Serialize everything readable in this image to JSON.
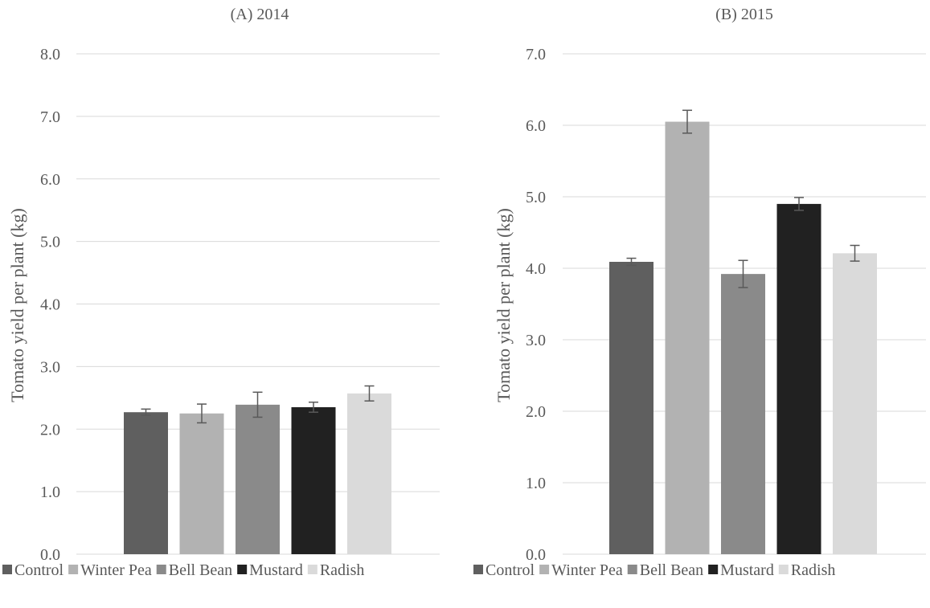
{
  "chart_data": [
    {
      "type": "bar",
      "title": "(A) 2014",
      "ylabel": "Tomato yield per plant (kg)",
      "xlabel": "",
      "ylim": [
        0,
        8
      ],
      "yticks": [
        "0.0",
        "1.0",
        "2.0",
        "3.0",
        "4.0",
        "5.0",
        "6.0",
        "7.0",
        "8.0"
      ],
      "grid": "horizontal",
      "legend_position": "bottom",
      "series": [
        {
          "name": "Control",
          "value": 2.27,
          "error": 0.05,
          "color": "#5f5f5f"
        },
        {
          "name": "Winter Pea",
          "value": 2.25,
          "error": 0.15,
          "color": "#b2b2b2"
        },
        {
          "name": "Bell Bean",
          "value": 2.39,
          "error": 0.2,
          "color": "#8a8a8a"
        },
        {
          "name": "Mustard",
          "value": 2.35,
          "error": 0.08,
          "color": "#212121"
        },
        {
          "name": "Radish",
          "value": 2.57,
          "error": 0.12,
          "color": "#dadada"
        }
      ]
    },
    {
      "type": "bar",
      "title": "(B) 2015",
      "ylabel": "Tomato yield per plant (kg)",
      "xlabel": "",
      "ylim": [
        0,
        7
      ],
      "yticks": [
        "0.0",
        "1.0",
        "2.0",
        "3.0",
        "4.0",
        "5.0",
        "6.0",
        "7.0"
      ],
      "grid": "horizontal",
      "legend_position": "bottom",
      "series": [
        {
          "name": "Control",
          "value": 4.09,
          "error": 0.05,
          "color": "#5f5f5f"
        },
        {
          "name": "Winter Pea",
          "value": 6.05,
          "error": 0.16,
          "color": "#b2b2b2"
        },
        {
          "name": "Bell Bean",
          "value": 3.92,
          "error": 0.19,
          "color": "#8a8a8a"
        },
        {
          "name": "Mustard",
          "value": 4.9,
          "error": 0.09,
          "color": "#212121"
        },
        {
          "name": "Radish",
          "value": 4.21,
          "error": 0.11,
          "color": "#dadada"
        }
      ]
    }
  ]
}
